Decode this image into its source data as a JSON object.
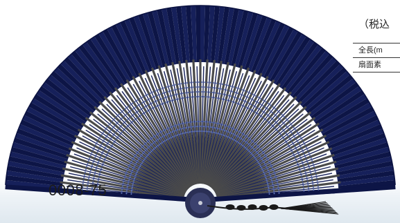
{
  "product_code": "0008-75",
  "tax_note": "（税込",
  "spec_labels": [
    "全長(m",
    "扇面素"
  ],
  "colors": {
    "fan_paper": "#16205a",
    "fan_paper_dark": "#0d1546",
    "fan_rib": "#4a4a4a",
    "lace_blue": "#5e72b6",
    "tassel": "#1a1a1a"
  }
}
